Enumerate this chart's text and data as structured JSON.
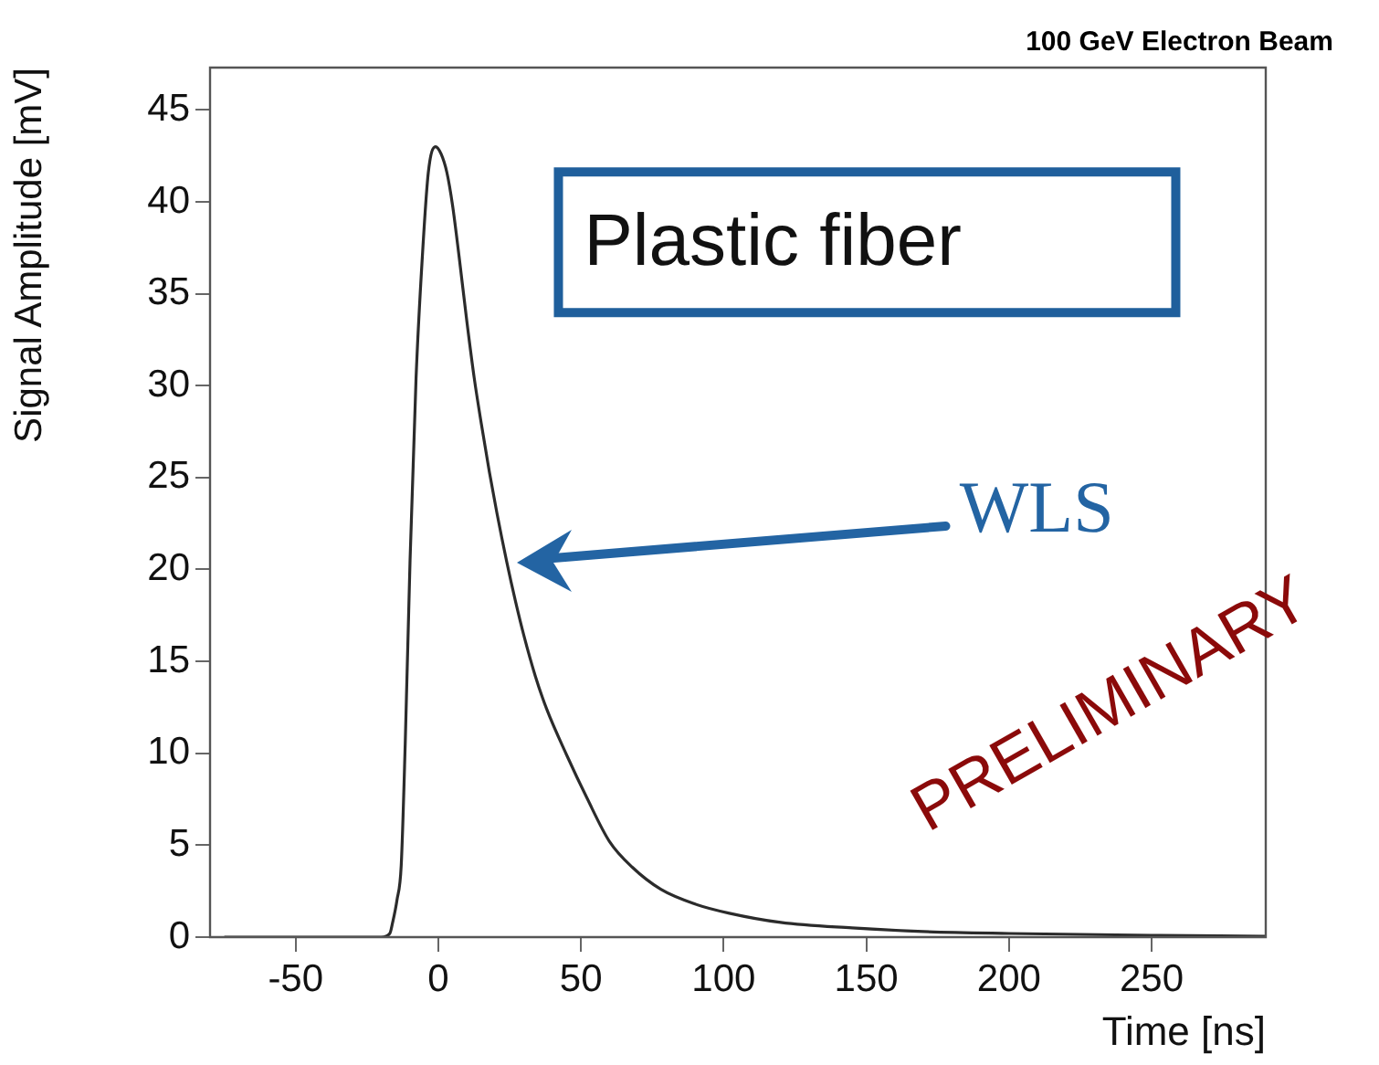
{
  "chart_data": {
    "type": "line",
    "title": "100 GeV Electron Beam",
    "xlabel": "Time [ns]",
    "ylabel": "Signal Amplitude [mV]",
    "xlim": [
      -80,
      290
    ],
    "ylim": [
      0,
      47.3
    ],
    "xticks": [
      -50,
      0,
      50,
      100,
      150,
      200,
      250
    ],
    "yticks": [
      0,
      5,
      10,
      15,
      20,
      25,
      30,
      35,
      40,
      45
    ],
    "grid": false,
    "legend": false,
    "series": [
      {
        "color": "#2b2b2b",
        "x": [
          -75,
          -40,
          -20,
          -17,
          -16,
          -14.5,
          -13,
          -11.6,
          -9.9,
          -7.8,
          -5.6,
          -3.5,
          -1,
          1,
          3,
          5,
          7.3,
          10,
          12.6,
          15,
          17.9,
          20.5,
          24,
          27,
          30,
          34,
          38,
          45,
          52,
          60,
          68,
          78,
          90,
          102,
          120,
          145,
          170,
          200,
          250,
          290
        ],
        "values": [
          0,
          0,
          0,
          0.2,
          0.8,
          2,
          3.9,
          10.5,
          20.5,
          30.4,
          37,
          41.6,
          43,
          42.6,
          41.6,
          39.8,
          37,
          33.5,
          30.4,
          28,
          25.3,
          23.1,
          20.4,
          18.3,
          16.4,
          14.2,
          12.4,
          9.9,
          7.6,
          5.2,
          3.8,
          2.6,
          1.8,
          1.3,
          0.8,
          0.5,
          0.3,
          0.2,
          0.1,
          0.05
        ]
      }
    ],
    "annotations": [
      "Plastic fiber",
      "WLS",
      "PRELIMINARY"
    ]
  }
}
